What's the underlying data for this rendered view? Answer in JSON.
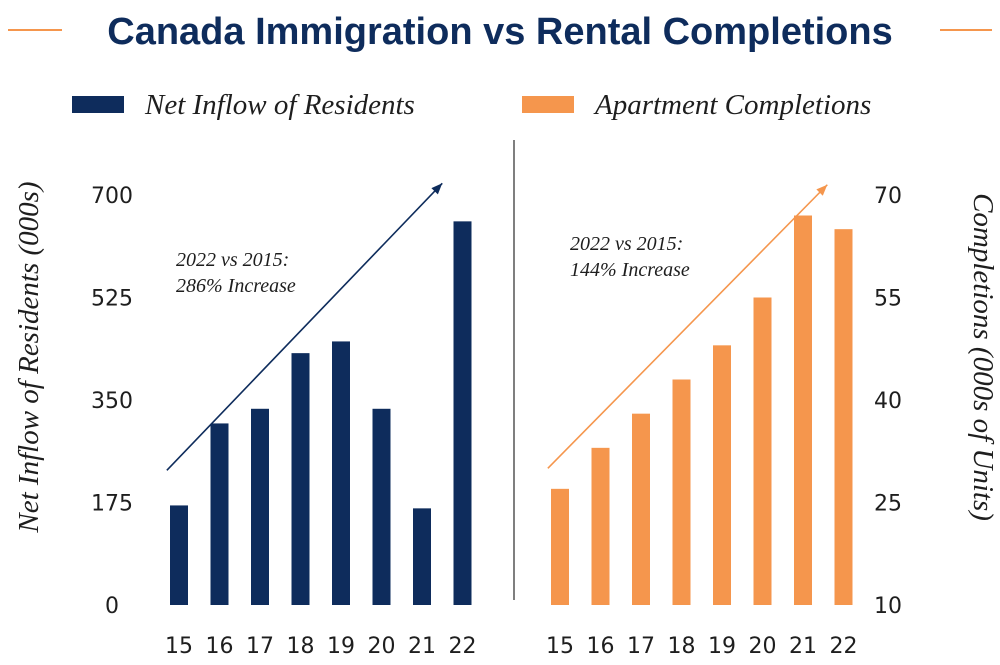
{
  "title": "Canada Immigration vs Rental Completions",
  "colors": {
    "navy": "#0e2c5c",
    "orange": "#f5964d",
    "text": "#1e1e1e",
    "divider": "#555555"
  },
  "legend": [
    {
      "label": "Net Inflow of Residents",
      "color": "#0e2c5c"
    },
    {
      "label": "Apartment Completions",
      "color": "#f5964d"
    }
  ],
  "chart_data": [
    {
      "type": "bar",
      "categories": [
        "15",
        "16",
        "17",
        "18",
        "19",
        "20",
        "21",
        "22"
      ],
      "series": [
        {
          "name": "Net Inflow of Residents",
          "values": [
            170,
            310,
            335,
            430,
            450,
            335,
            165,
            655
          ]
        }
      ],
      "ylabel": "Net Inflow of Residents (000s)",
      "ylim": [
        0,
        700
      ],
      "yticks": [
        0,
        175,
        350,
        525,
        700
      ],
      "ytick_labels": [
        "0",
        "175",
        "350",
        "525",
        "700"
      ],
      "annotation": {
        "lines": [
          "2022 vs 2015:",
          "286% Increase"
        ]
      },
      "trend_arrow": {
        "from": [
          -0.3,
          230
        ],
        "to": [
          6.5,
          720
        ]
      }
    },
    {
      "type": "bar",
      "categories": [
        "15",
        "16",
        "17",
        "18",
        "19",
        "20",
        "21",
        "22"
      ],
      "series": [
        {
          "name": "Apartment Completions",
          "values": [
            27,
            33,
            38,
            43,
            48,
            55,
            67,
            65
          ]
        }
      ],
      "ylabel": "Completions (000s of Units)",
      "ylim": [
        10,
        70
      ],
      "yticks": [
        10,
        25,
        40,
        55,
        70
      ],
      "ytick_labels": [
        "10",
        "25",
        "40",
        "55",
        "70"
      ],
      "annotation": {
        "lines": [
          "2022 vs 2015:",
          "144% Increase"
        ]
      },
      "trend_arrow": {
        "from": [
          -0.3,
          30
        ],
        "to": [
          6.6,
          71.5
        ]
      }
    }
  ]
}
